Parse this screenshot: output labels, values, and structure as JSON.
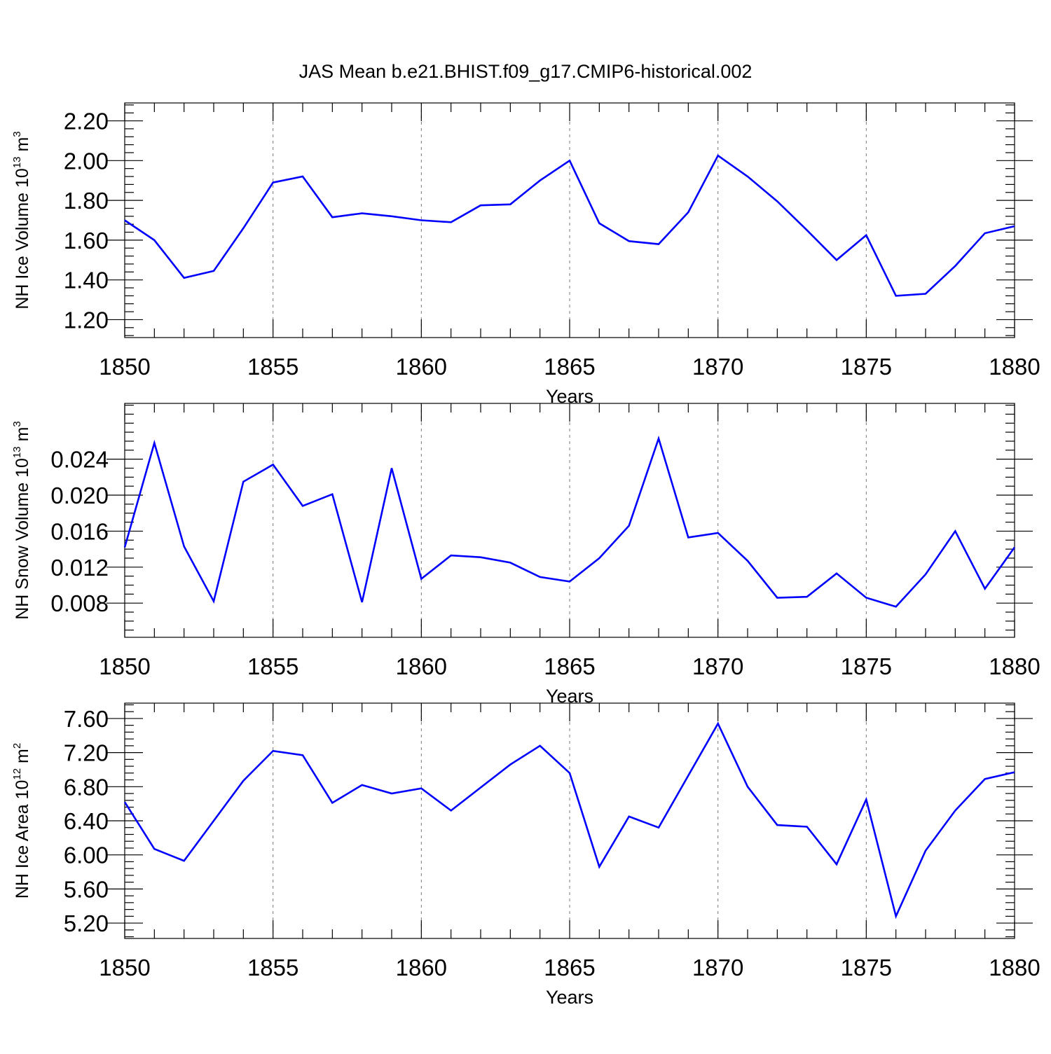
{
  "figure": {
    "title": "JAS Mean b.e21.BHIST.f09_g17.CMIP6-historical.002"
  },
  "chart_data": [
    {
      "type": "line",
      "id": "ice-volume",
      "ylabel": "NH Ice Volume 10",
      "ylabel_exp": "13",
      "ylabel_unit": " m",
      "ylabel_unit_exp": "3",
      "xlabel": "Years",
      "xlim": [
        1850,
        1880
      ],
      "ylim": [
        1.11,
        2.29
      ],
      "xticks": [
        1850,
        1855,
        1860,
        1865,
        1870,
        1875,
        1880
      ],
      "xtick_labels": [
        "1850",
        "1855",
        "1860",
        "1865",
        "1870",
        "1875",
        "1880"
      ],
      "yticks": [
        1.2,
        1.4,
        1.6,
        1.8,
        2.0,
        2.2
      ],
      "ytick_labels": [
        "1.20",
        "1.40",
        "1.60",
        "1.80",
        "2.00",
        "2.20"
      ],
      "yminor_step": 0.04,
      "grid": "vertical dashed at major x ticks",
      "color": "#0000ff",
      "x": [
        1850,
        1851,
        1852,
        1853,
        1854,
        1855,
        1856,
        1857,
        1858,
        1859,
        1860,
        1861,
        1862,
        1863,
        1864,
        1865,
        1866,
        1867,
        1868,
        1869,
        1870,
        1871,
        1872,
        1873,
        1874,
        1875,
        1876,
        1877,
        1878,
        1879,
        1880
      ],
      "y": [
        1.7,
        1.6,
        1.41,
        1.445,
        1.66,
        1.89,
        1.92,
        1.715,
        1.735,
        1.72,
        1.7,
        1.69,
        1.775,
        1.78,
        1.9,
        2.0,
        1.685,
        1.595,
        1.58,
        1.74,
        2.025,
        1.92,
        1.795,
        1.65,
        1.5,
        1.625,
        1.32,
        1.33,
        1.47,
        1.635,
        1.67
      ]
    },
    {
      "type": "line",
      "id": "snow-volume",
      "ylabel": "NH Snow Volume 10",
      "ylabel_exp": "13",
      "ylabel_unit": " m",
      "ylabel_unit_exp": "3",
      "xlabel": "Years",
      "xlim": [
        1850,
        1880
      ],
      "ylim": [
        0.0042,
        0.0302
      ],
      "xticks": [
        1850,
        1855,
        1860,
        1865,
        1870,
        1875,
        1880
      ],
      "xtick_labels": [
        "1850",
        "1855",
        "1860",
        "1865",
        "1870",
        "1875",
        "1880"
      ],
      "yticks": [
        0.008,
        0.012,
        0.016,
        0.02,
        0.024
      ],
      "ytick_labels": [
        "0.008",
        "0.012",
        "0.016",
        "0.020",
        "0.024"
      ],
      "yminor_step": 0.001,
      "grid": "vertical dashed at major x ticks",
      "color": "#0000ff",
      "x": [
        1850,
        1851,
        1852,
        1853,
        1854,
        1855,
        1856,
        1857,
        1858,
        1859,
        1860,
        1861,
        1862,
        1863,
        1864,
        1865,
        1866,
        1867,
        1868,
        1869,
        1870,
        1871,
        1872,
        1873,
        1874,
        1875,
        1876,
        1877,
        1878,
        1879,
        1880
      ],
      "y": [
        0.0142,
        0.0258,
        0.0143,
        0.0082,
        0.0215,
        0.0234,
        0.0188,
        0.0201,
        0.0081,
        0.023,
        0.0107,
        0.0133,
        0.0131,
        0.0125,
        0.0109,
        0.0104,
        0.013,
        0.0166,
        0.0263,
        0.0153,
        0.0158,
        0.0127,
        0.0086,
        0.0087,
        0.0113,
        0.0086,
        0.0076,
        0.0112,
        0.016,
        0.0096,
        0.0142
      ]
    },
    {
      "type": "line",
      "id": "ice-area",
      "ylabel": "NH Ice Area 10",
      "ylabel_exp": "12",
      "ylabel_unit": " m",
      "ylabel_unit_exp": "2",
      "xlabel": "Years",
      "xlim": [
        1850,
        1880
      ],
      "ylim": [
        5.02,
        7.78
      ],
      "xticks": [
        1850,
        1855,
        1860,
        1865,
        1870,
        1875,
        1880
      ],
      "xtick_labels": [
        "1850",
        "1855",
        "1860",
        "1865",
        "1870",
        "1875",
        "1880"
      ],
      "yticks": [
        5.2,
        5.6,
        6.0,
        6.4,
        6.8,
        7.2,
        7.6
      ],
      "ytick_labels": [
        "5.20",
        "5.60",
        "6.00",
        "6.40",
        "6.80",
        "7.20",
        "7.60"
      ],
      "yminor_step": 0.08,
      "grid": "vertical dashed at major x ticks",
      "color": "#0000ff",
      "x": [
        1850,
        1851,
        1852,
        1853,
        1854,
        1855,
        1856,
        1857,
        1858,
        1859,
        1860,
        1861,
        1862,
        1863,
        1864,
        1865,
        1866,
        1867,
        1868,
        1869,
        1870,
        1871,
        1872,
        1873,
        1874,
        1875,
        1876,
        1877,
        1878,
        1879,
        1880
      ],
      "y": [
        6.62,
        6.07,
        5.93,
        6.4,
        6.87,
        7.22,
        7.17,
        6.61,
        6.82,
        6.72,
        6.78,
        6.52,
        6.79,
        7.06,
        7.28,
        6.96,
        5.86,
        6.45,
        6.32,
        6.93,
        7.54,
        6.8,
        6.35,
        6.33,
        5.89,
        6.65,
        5.28,
        6.05,
        6.52,
        6.89,
        6.97
      ]
    }
  ]
}
